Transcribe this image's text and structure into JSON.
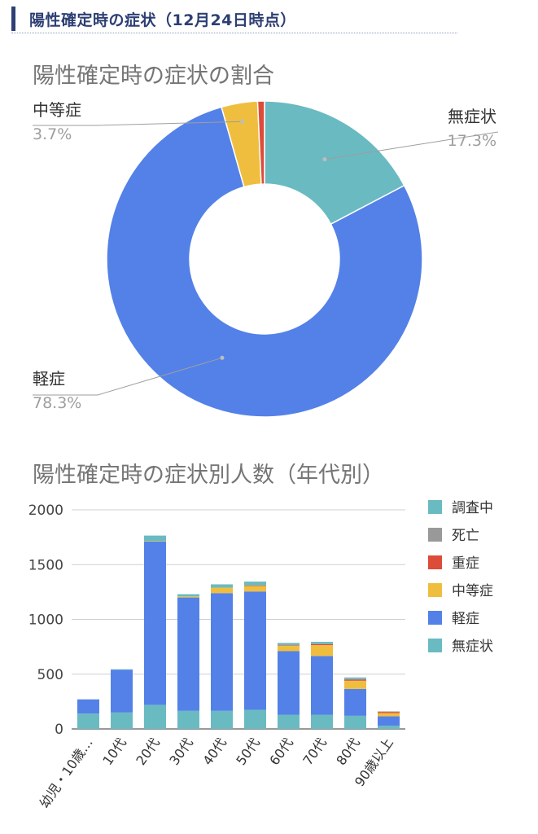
{
  "header": {
    "title": "陽性確定時の症状（12月24日時点）"
  },
  "colors": {
    "header": "#2d3f73"
  },
  "chart_data": [
    {
      "type": "pie",
      "title": "陽性確定時の症状の割合",
      "labels": [
        "無症状",
        "軽症",
        "中等症",
        "重症"
      ],
      "values": [
        17.3,
        78.3,
        3.7,
        0.7
      ],
      "value_labels": [
        "17.3%",
        "78.3%",
        "3.7%",
        ""
      ],
      "colors": [
        "#6abac2",
        "#5381e8",
        "#f0be3e",
        "#dd4b39"
      ],
      "donut": true,
      "start_angle_deg": 0
    },
    {
      "type": "bar",
      "stacked": true,
      "title": "陽性確定時の症状別人数（年代別）",
      "categories": [
        "幼児・10歳…",
        "10代",
        "20代",
        "30代",
        "40代",
        "50代",
        "60代",
        "70代",
        "80代",
        "90歳以上"
      ],
      "series": [
        {
          "name": "無症状",
          "color": "#6abac2",
          "values": [
            140,
            150,
            220,
            165,
            165,
            175,
            130,
            130,
            120,
            30
          ]
        },
        {
          "name": "軽症",
          "color": "#5381e8",
          "values": [
            130,
            390,
            1490,
            1035,
            1075,
            1080,
            580,
            535,
            245,
            85
          ]
        },
        {
          "name": "中等症",
          "color": "#f0be3e",
          "values": [
            0,
            0,
            5,
            10,
            50,
            50,
            50,
            100,
            75,
            30
          ]
        },
        {
          "name": "重症",
          "color": "#dd4b39",
          "values": [
            0,
            0,
            0,
            0,
            0,
            5,
            5,
            10,
            10,
            10
          ]
        },
        {
          "name": "死亡",
          "color": "#999999",
          "values": [
            0,
            0,
            0,
            0,
            0,
            0,
            0,
            0,
            5,
            5
          ]
        },
        {
          "name": "調査中",
          "color": "#6abac2",
          "values": [
            0,
            5,
            50,
            20,
            30,
            35,
            20,
            20,
            15,
            0
          ]
        }
      ],
      "legend_order": [
        "調査中",
        "死亡",
        "重症",
        "中等症",
        "軽症",
        "無症状"
      ],
      "ylim": [
        0,
        2000
      ],
      "yticks": [
        0,
        500,
        1000,
        1500,
        2000
      ],
      "grid": true,
      "legend": "right"
    }
  ]
}
